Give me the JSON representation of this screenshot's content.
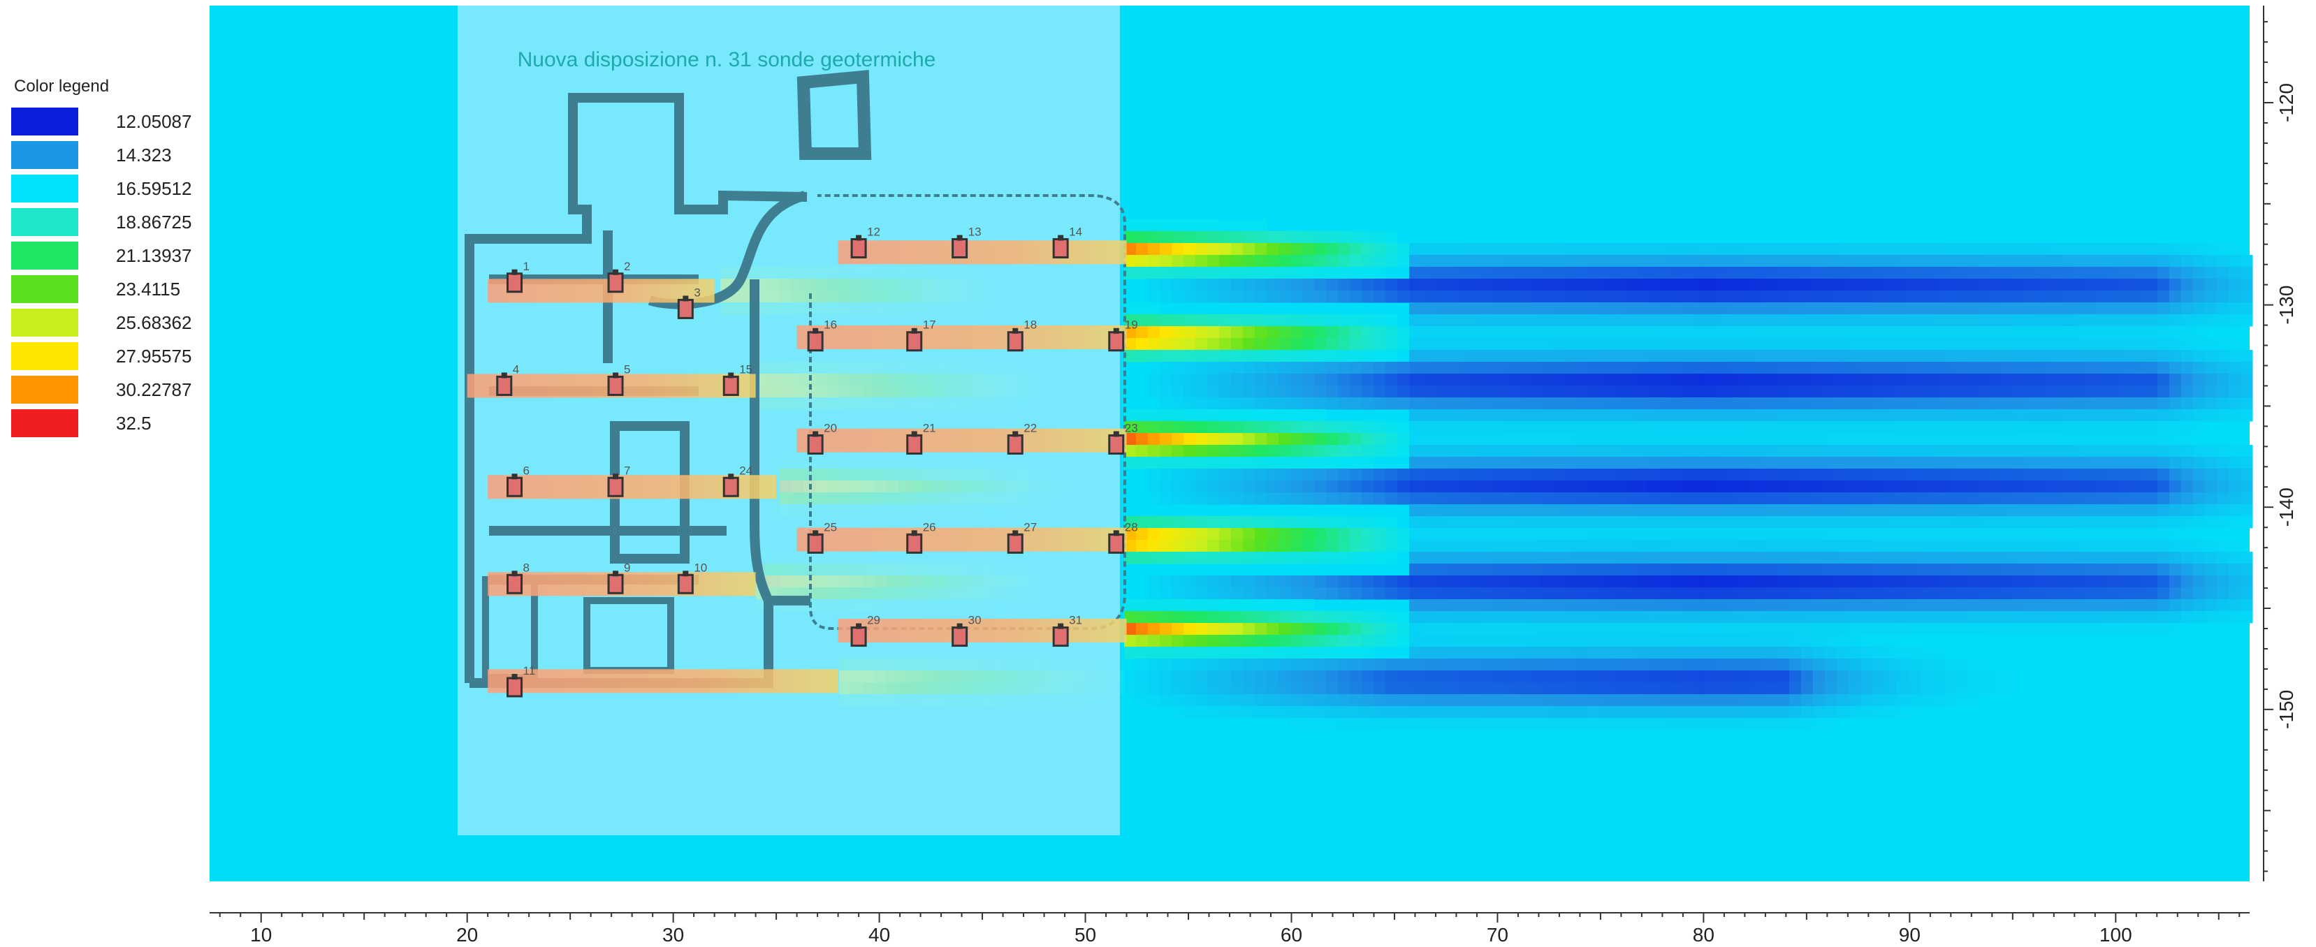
{
  "legend": {
    "title": "Color legend",
    "entries": [
      {
        "label": "12.05087",
        "color": "#0a1edc"
      },
      {
        "label": "14.323",
        "color": "#1e96e6"
      },
      {
        "label": "16.59512",
        "color": "#00e1fa"
      },
      {
        "label": "18.86725",
        "color": "#1ee6c8"
      },
      {
        "label": "21.13937",
        "color": "#1ee664"
      },
      {
        "label": "23.4115",
        "color": "#5ae11e"
      },
      {
        "label": "25.68362",
        "color": "#c8f01e"
      },
      {
        "label": "27.95575",
        "color": "#ffe600"
      },
      {
        "label": "30.22787",
        "color": "#ff9600"
      },
      {
        "label": "32.5",
        "color": "#f01e1e"
      }
    ]
  },
  "chart_data": {
    "type": "heatmap",
    "title": "Nuova disposizione  n. 31 sonde geotermiche",
    "xlim": [
      7.5,
      106.5
    ],
    "ylim": [
      -115.2,
      -158.5
    ],
    "x_ticks": [
      10,
      20,
      30,
      40,
      50,
      60,
      70,
      80,
      90,
      100
    ],
    "y_ticks": [
      -120,
      -130,
      -140,
      -150
    ],
    "background_value": 16.6,
    "plume_rows": [
      {
        "y": -127.4,
        "x_start": 39,
        "x_end": 52,
        "peak": 31.5
      },
      {
        "y": -129.3,
        "x_start": 22,
        "x_end": 32,
        "peak": 30
      },
      {
        "y": -131.6,
        "x_start": 37,
        "x_end": 52,
        "peak": 31.5
      },
      {
        "y": -134.0,
        "x_start": 21,
        "x_end": 34,
        "peak": 30
      },
      {
        "y": -136.7,
        "x_start": 37,
        "x_end": 52,
        "peak": 31.5
      },
      {
        "y": -139.0,
        "x_start": 22,
        "x_end": 35,
        "peak": 30
      },
      {
        "y": -141.6,
        "x_start": 37,
        "x_end": 52,
        "peak": 31.5
      },
      {
        "y": -143.8,
        "x_start": 22,
        "x_end": 34,
        "peak": 30
      },
      {
        "y": -146.1,
        "x_start": 39,
        "x_end": 52,
        "peak": 31.5
      },
      {
        "y": -148.6,
        "x_start": 22,
        "x_end": 38,
        "peak": 28
      }
    ],
    "cold_rows": [
      {
        "y": -129.1,
        "x_start": 53,
        "x_end": 102,
        "min": 12.3
      },
      {
        "y": -133.9,
        "x_start": 53,
        "x_end": 102,
        "min": 12.3
      },
      {
        "y": -138.9,
        "x_start": 53,
        "x_end": 102,
        "min": 12.3
      },
      {
        "y": -143.8,
        "x_start": 53,
        "x_end": 102,
        "min": 12.3
      },
      {
        "y": -148.6,
        "x_start": 52,
        "x_end": 84,
        "min": 12.8
      }
    ],
    "probes": [
      {
        "id": "1",
        "x": 22.3,
        "y": -128.9
      },
      {
        "id": "2",
        "x": 27.2,
        "y": -128.9
      },
      {
        "id": "3",
        "x": 30.6,
        "y": -130.2
      },
      {
        "id": "4",
        "x": 21.8,
        "y": -134.0
      },
      {
        "id": "5",
        "x": 27.2,
        "y": -134.0
      },
      {
        "id": "6",
        "x": 22.3,
        "y": -139.0
      },
      {
        "id": "7",
        "x": 27.2,
        "y": -139.0
      },
      {
        "id": "8",
        "x": 22.3,
        "y": -143.8
      },
      {
        "id": "9",
        "x": 27.2,
        "y": -143.8
      },
      {
        "id": "10",
        "x": 30.6,
        "y": -143.8
      },
      {
        "id": "11",
        "x": 22.3,
        "y": -148.9
      },
      {
        "id": "12",
        "x": 39.0,
        "y": -127.2
      },
      {
        "id": "13",
        "x": 43.9,
        "y": -127.2
      },
      {
        "id": "14",
        "x": 48.8,
        "y": -127.2
      },
      {
        "id": "15",
        "x": 32.8,
        "y": -134.0
      },
      {
        "id": "16",
        "x": 36.9,
        "y": -131.8
      },
      {
        "id": "17",
        "x": 41.7,
        "y": -131.8
      },
      {
        "id": "18",
        "x": 46.6,
        "y": -131.8
      },
      {
        "id": "19",
        "x": 51.5,
        "y": -131.8
      },
      {
        "id": "20",
        "x": 36.9,
        "y": -136.9
      },
      {
        "id": "21",
        "x": 41.7,
        "y": -136.9
      },
      {
        "id": "22",
        "x": 46.6,
        "y": -136.9
      },
      {
        "id": "23",
        "x": 51.5,
        "y": -136.9
      },
      {
        "id": "24",
        "x": 32.8,
        "y": -139.0
      },
      {
        "id": "25",
        "x": 36.9,
        "y": -141.8
      },
      {
        "id": "26",
        "x": 41.7,
        "y": -141.8
      },
      {
        "id": "27",
        "x": 46.6,
        "y": -141.8
      },
      {
        "id": "28",
        "x": 51.5,
        "y": -141.8
      },
      {
        "id": "29",
        "x": 39.0,
        "y": -146.4
      },
      {
        "id": "30",
        "x": 43.9,
        "y": -146.4
      },
      {
        "id": "31",
        "x": 48.8,
        "y": -146.4
      }
    ],
    "colors": {
      "background": "#00ddf8",
      "overlay": "#a0ecff",
      "wall": "#3f7e90"
    }
  }
}
